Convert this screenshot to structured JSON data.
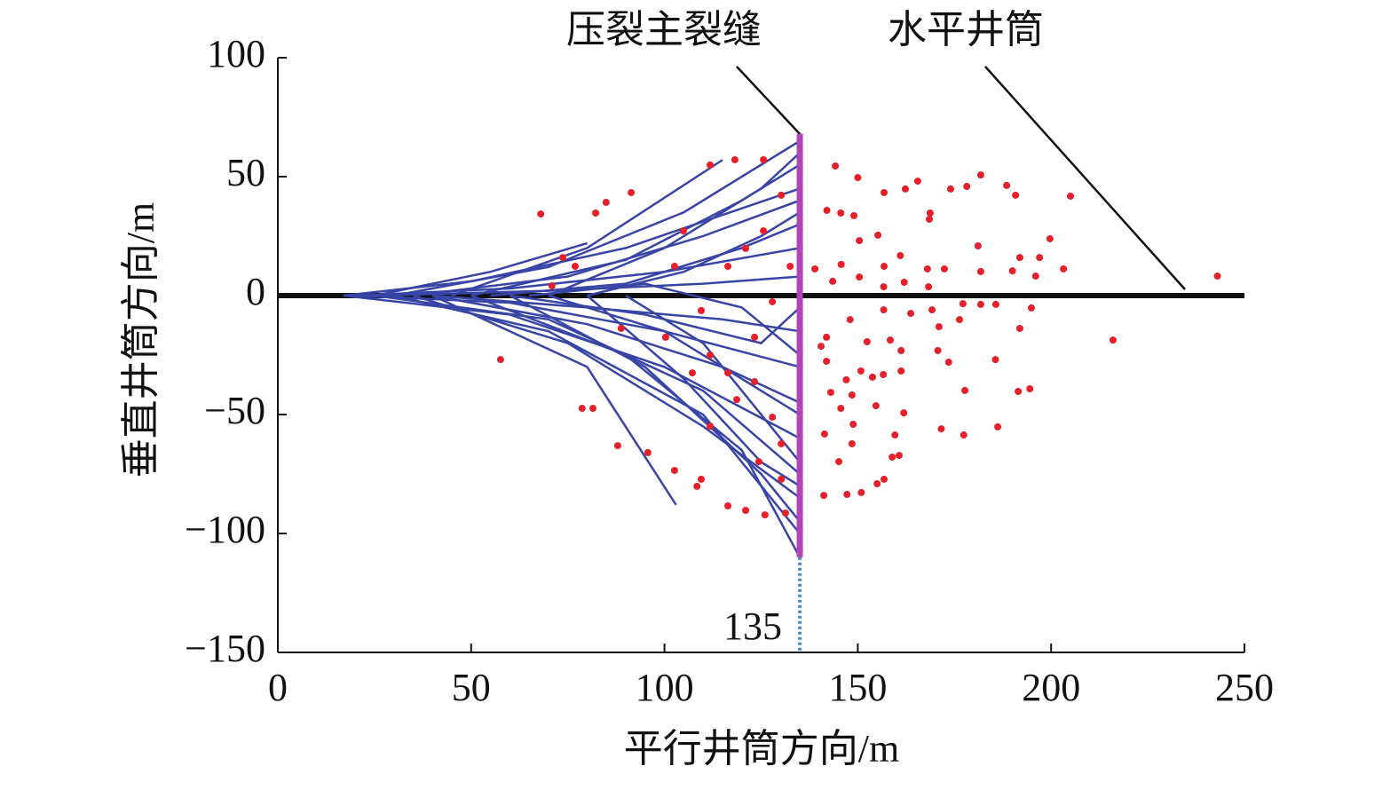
{
  "chart_data": {
    "type": "scatter",
    "xlabel": "平行井筒方向/m",
    "ylabel": "垂直井筒方向/m",
    "xlim": [
      0,
      250
    ],
    "ylim": [
      -150,
      100
    ],
    "xticks": [
      0,
      50,
      100,
      150,
      200,
      250
    ],
    "yticks": [
      {
        "value": -150,
        "label": "−150"
      },
      {
        "value": -100,
        "label": "−100"
      },
      {
        "value": -50,
        "label": "−50"
      },
      0,
      50,
      100
    ],
    "annotations": [
      "压裂主裂缝",
      "水平井筒"
    ],
    "fracture_x": 135,
    "fracture_y": [
      -110,
      68
    ],
    "fracture_color": "#b244b8",
    "wellbore_y": 0,
    "wellbore_color": "#111111",
    "line_color": "#3845a6",
    "lines": [
      {
        "x": [
          17,
          60,
          100,
          135
        ],
        "y": [
          0,
          -8,
          -30,
          -60
        ]
      },
      {
        "x": [
          17,
          50,
          90,
          135
        ],
        "y": [
          0,
          6,
          20,
          45
        ]
      },
      {
        "x": [
          25,
          55,
          80
        ],
        "y": [
          0,
          10,
          22
        ]
      },
      {
        "x": [
          30,
          70,
          110,
          135
        ],
        "y": [
          0,
          -15,
          -50,
          -100
        ]
      },
      {
        "x": [
          30,
          70,
          105,
          135
        ],
        "y": [
          0,
          12,
          35,
          65
        ]
      },
      {
        "x": [
          40,
          80,
          103
        ],
        "y": [
          0,
          -30,
          -88
        ]
      },
      {
        "x": [
          45,
          80,
          115
        ],
        "y": [
          0,
          20,
          57
        ]
      },
      {
        "x": [
          20,
          60,
          100,
          135
        ],
        "y": [
          0,
          -3,
          -15,
          -30
        ]
      },
      {
        "x": [
          20,
          60,
          100,
          135
        ],
        "y": [
          0,
          3,
          10,
          20
        ]
      },
      {
        "x": [
          35,
          75,
          110,
          135
        ],
        "y": [
          0,
          -20,
          -55,
          -85
        ]
      },
      {
        "x": [
          35,
          75,
          110,
          135
        ],
        "y": [
          0,
          8,
          25,
          40
        ]
      },
      {
        "x": [
          50,
          90,
          120,
          135
        ],
        "y": [
          0,
          -25,
          -65,
          -110
        ]
      },
      {
        "x": [
          50,
          90,
          120,
          135
        ],
        "y": [
          0,
          15,
          40,
          55
        ]
      },
      {
        "x": [
          25,
          70,
          110,
          135
        ],
        "y": [
          0,
          -10,
          -40,
          -75
        ]
      },
      {
        "x": [
          25,
          70,
          110,
          135
        ],
        "y": [
          0,
          2,
          5,
          8
        ]
      },
      {
        "x": [
          40,
          80,
          115,
          135
        ],
        "y": [
          0,
          -5,
          -10,
          -15
        ]
      },
      {
        "x": [
          40,
          80,
          115,
          135
        ],
        "y": [
          0,
          -12,
          -30,
          -45
        ]
      },
      {
        "x": [
          55,
          90,
          120,
          135
        ],
        "y": [
          0,
          5,
          20,
          30
        ]
      },
      {
        "x": [
          60,
          95,
          125,
          135
        ],
        "y": [
          0,
          -30,
          -75,
          -95
        ]
      },
      {
        "x": [
          60,
          95,
          125,
          135
        ],
        "y": [
          0,
          -8,
          -20,
          -5
        ]
      },
      {
        "x": [
          70,
          100,
          125,
          135
        ],
        "y": [
          0,
          20,
          45,
          60
        ]
      },
      {
        "x": [
          70,
          100,
          125,
          135
        ],
        "y": [
          0,
          -15,
          -40,
          -50
        ]
      },
      {
        "x": [
          80,
          105,
          125,
          135
        ],
        "y": [
          0,
          -35,
          -70,
          -80
        ]
      },
      {
        "x": [
          80,
          105,
          125,
          135
        ],
        "y": [
          0,
          10,
          25,
          35
        ]
      },
      {
        "x": [
          90,
          110,
          130,
          135
        ],
        "y": [
          0,
          -20,
          -60,
          -70
        ]
      },
      {
        "x": [
          65,
          95,
          120,
          135
        ],
        "y": [
          0,
          5,
          -5,
          -25
        ]
      }
    ],
    "points": {
      "color": "#e5202b",
      "x": [
        144.2,
        150,
        181.8,
        188.5,
        205,
        178.2,
        165.5,
        156.8,
        162.3,
        190.8,
        174,
        168.7,
        168.5,
        149,
        145.6,
        142,
        155.2,
        199.7,
        181.1,
        150.4,
        161,
        191.9,
        197,
        203.2,
        196,
        156.8,
        243,
        168,
        172.4,
        181.8,
        190,
        138.9,
        145.7,
        143.5,
        162,
        168.3,
        156.7,
        150.4,
        169.2,
        177.2,
        181.8,
        185.7,
        194.9,
        216,
        191.9,
        176.3,
        171,
        163.7,
        156.7,
        148,
        140.5,
        141.9,
        152.4,
        158.4,
        161.2,
        170.7,
        173.5,
        185.6,
        141.9,
        150.8,
        161.2,
        147,
        153.8,
        156.6,
        177.7,
        191.5,
        194.5,
        143,
        148.5,
        154.7,
        145.6,
        161.9,
        171.6,
        177.4,
        186.2,
        148.8,
        141.4,
        159.6,
        148.5,
        145.1,
        158.9,
        160.7,
        156.8,
        155,
        147.2,
        141.2,
        150.9,
        68,
        118.2,
        125.6,
        111.8,
        91.4,
        84.9,
        82.2,
        73.7,
        76.9,
        70.9,
        57.6,
        78.7,
        81.5,
        87.9,
        95.7,
        102.6,
        109.5,
        108.4,
        116.4,
        121,
        126,
        131.3,
        100.3,
        111.8,
        116.4,
        123.3,
        127.9,
        130.2,
        109.5,
        116.4,
        121,
        125.6,
        130.2,
        104.9,
        88.8,
        107.2,
        123.3,
        127.9,
        132.5,
        102.6,
        118.7,
        111.8,
        124.4,
        130.2
      ],
      "y": [
        54.5,
        49.6,
        50.7,
        46.3,
        41.8,
        45.9,
        48.1,
        43.3,
        44.8,
        42.2,
        44.8,
        34.7,
        32.1,
        33.6,
        34.7,
        35.8,
        25.4,
        23.9,
        20.9,
        23.1,
        16.8,
        16,
        16,
        11.2,
        8.2,
        12.3,
        8.2,
        11.2,
        11.2,
        10.1,
        10.4,
        11.2,
        13.1,
        6,
        5.6,
        3.7,
        3.7,
        7.8,
        -6,
        -3.4,
        -3.7,
        -3.7,
        -5.2,
        -18.7,
        -13.8,
        -10.1,
        -13.1,
        -7.5,
        -6,
        -10.1,
        -21.3,
        -17.5,
        -19.4,
        -18.7,
        -23.1,
        -23.1,
        -28,
        -26.9,
        -27.6,
        -31.7,
        -31.7,
        -35.4,
        -34.3,
        -33.2,
        -39.9,
        -40.3,
        -39.2,
        -40.7,
        -41.8,
        -46.3,
        -47.4,
        -49.3,
        -56,
        -58.6,
        -55.2,
        -54.1,
        -58.2,
        -58.6,
        -62.3,
        -69.8,
        -67.9,
        -67.2,
        -77.2,
        -79.1,
        -83.6,
        -84,
        -82.8,
        34.3,
        57.1,
        57.1,
        54.9,
        43.3,
        39.2,
        34.7,
        16,
        12.3,
        4.1,
        -26.9,
        -47.4,
        -47.4,
        -63.1,
        -66,
        -73.5,
        -77.2,
        -80.2,
        -88.4,
        -90.3,
        -92.2,
        -91.4,
        -17.5,
        -25,
        -32.5,
        -36.2,
        -51.1,
        -62.3,
        -6.3,
        12.3,
        19.8,
        27.2,
        42.2,
        27.2,
        -13.8,
        -32.5,
        -17.5,
        -2.6,
        12.3,
        12.3,
        -43.7,
        -54.9,
        -69.8,
        -77.2
      ]
    }
  }
}
